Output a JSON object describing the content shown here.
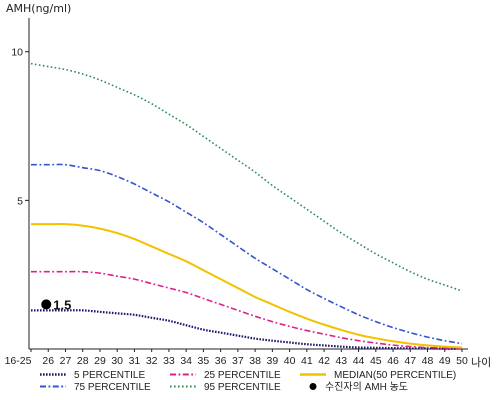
{
  "chart_data": {
    "type": "line",
    "ylabel": "AMH(ng/ml)",
    "xlabel": "나이",
    "categories": [
      "16-25",
      "26",
      "27",
      "28",
      "29",
      "30",
      "31",
      "32",
      "33",
      "34",
      "35",
      "36",
      "37",
      "38",
      "39",
      "40",
      "41",
      "42",
      "43",
      "44",
      "45",
      "46",
      "47",
      "48",
      "49",
      "50"
    ],
    "y_ticks": [
      5,
      10
    ],
    "ylim": [
      0,
      11
    ],
    "grid": false,
    "series": [
      {
        "name": "5 PERCENTILE",
        "color": "#1a1a6e",
        "dash": "dense-dot",
        "values": [
          1.3,
          1.3,
          1.3,
          1.3,
          1.25,
          1.2,
          1.15,
          1.05,
          0.95,
          0.8,
          0.65,
          0.55,
          0.45,
          0.35,
          0.28,
          0.22,
          0.16,
          0.12,
          0.08,
          0.05,
          0.04,
          0.03,
          0.02,
          0.02,
          0.01,
          0.01
        ]
      },
      {
        "name": "25 PERCENTILE",
        "color": "#e0208a",
        "dash": "dash-dot",
        "values": [
          2.6,
          2.6,
          2.6,
          2.6,
          2.55,
          2.45,
          2.35,
          2.2,
          2.05,
          1.9,
          1.7,
          1.5,
          1.3,
          1.1,
          0.92,
          0.76,
          0.62,
          0.5,
          0.38,
          0.28,
          0.2,
          0.13,
          0.08,
          0.05,
          0.03,
          0.02
        ]
      },
      {
        "name": "MEDIAN(50 PERCENTILE)",
        "color": "#f2c200",
        "dash": "solid",
        "values": [
          4.2,
          4.2,
          4.2,
          4.15,
          4.05,
          3.9,
          3.7,
          3.45,
          3.2,
          2.95,
          2.65,
          2.35,
          2.05,
          1.75,
          1.5,
          1.25,
          1.02,
          0.82,
          0.64,
          0.48,
          0.36,
          0.26,
          0.18,
          0.12,
          0.08,
          0.05
        ]
      },
      {
        "name": "75 PERCENTILE",
        "color": "#3355cc",
        "dash": "dash-dot",
        "values": [
          6.2,
          6.2,
          6.2,
          6.1,
          6.0,
          5.8,
          5.55,
          5.25,
          4.95,
          4.6,
          4.25,
          3.85,
          3.45,
          3.05,
          2.7,
          2.35,
          2.0,
          1.7,
          1.42,
          1.15,
          0.92,
          0.72,
          0.55,
          0.4,
          0.28,
          0.18
        ]
      },
      {
        "name": "95 PERCENTILE",
        "color": "#2e8b57",
        "dash": "dot",
        "values": [
          9.6,
          9.5,
          9.4,
          9.25,
          9.05,
          8.8,
          8.55,
          8.25,
          7.9,
          7.55,
          7.15,
          6.75,
          6.35,
          5.95,
          5.5,
          5.1,
          4.7,
          4.3,
          3.9,
          3.55,
          3.2,
          2.9,
          2.6,
          2.35,
          2.15,
          1.95
        ]
      }
    ],
    "marker": {
      "label": "수진자의 AMH 농도",
      "category": "26",
      "value": 1.5,
      "value_label": "1.5",
      "color": "#000000"
    },
    "legend": {
      "placement": "bottom",
      "entries": [
        {
          "label": "5 PERCENTILE",
          "series": 0
        },
        {
          "label": "25 PERCENTILE",
          "series": 1
        },
        {
          "label": "MEDIAN(50 PERCENTILE)",
          "series": 2
        },
        {
          "label": "75 PERCENTILE",
          "series": 3
        },
        {
          "label": "95 PERCENTILE",
          "series": 4
        },
        {
          "label": "수진자의 AMH 농도",
          "marker": true
        }
      ]
    }
  }
}
